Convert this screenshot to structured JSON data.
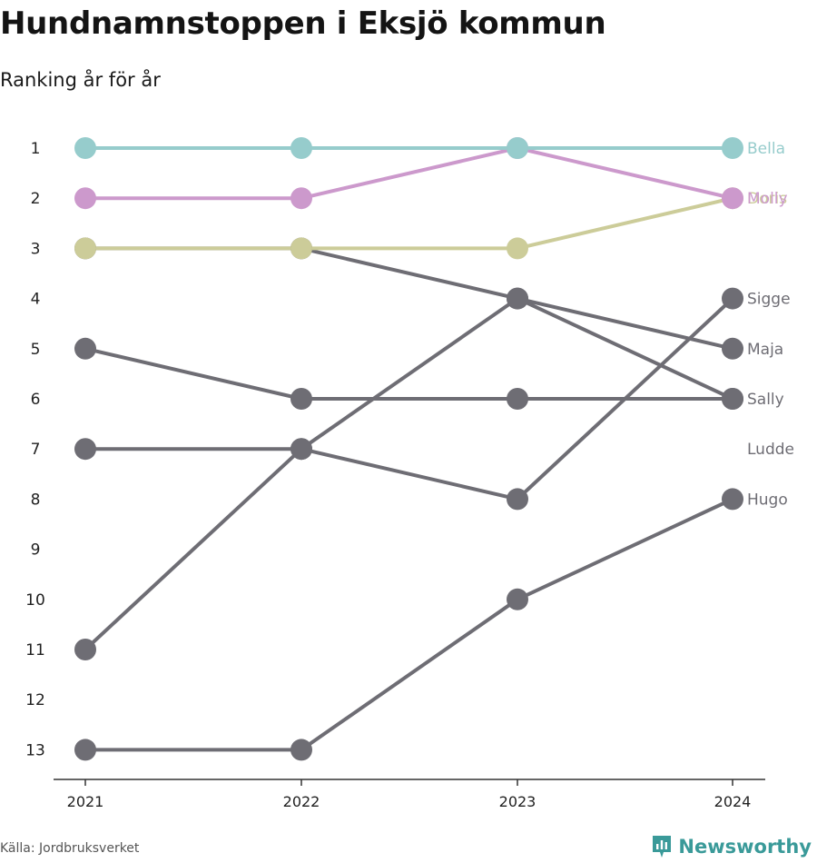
{
  "header": {
    "title": "Hundnamnstoppen i Eksjö kommun",
    "subtitle": "Ranking år för år"
  },
  "footer": {
    "source": "Källa: Jordbruksverket",
    "brand": "Newsworthy"
  },
  "colors": {
    "highlight_1": "#96cccc",
    "highlight_2": "#cc99cc",
    "highlight_3": "#cccc99",
    "default": "#6e6d74",
    "axis": "#333333",
    "brand": "#3a9a99"
  },
  "icons": {
    "brand_logo": "bar-chart-badge-icon"
  },
  "chart_data": {
    "type": "line",
    "title": "Hundnamnstoppen i Eksjö kommun",
    "subtitle": "Ranking år för år",
    "x": [
      "2021",
      "2022",
      "2023",
      "2024"
    ],
    "y_ticks": [
      "1",
      "2",
      "3",
      "4",
      "5",
      "6",
      "7",
      "8",
      "9",
      "10",
      "11",
      "12",
      "13"
    ],
    "ylim": [
      1,
      13
    ],
    "y_reversed": true,
    "grid": false,
    "legend": "direct labels at right end",
    "series": [
      {
        "name": "Hugo",
        "values": [
          13,
          13,
          10,
          8
        ],
        "color": "#6e6d74"
      },
      {
        "name": "Ludde",
        "values": [
          11,
          7,
          4,
          6
        ],
        "color": "#6e6d74",
        "label_rank": 7
      },
      {
        "name": "Sigge",
        "values": [
          7,
          7,
          8,
          4
        ],
        "color": "#6e6d74"
      },
      {
        "name": "Sally",
        "values": [
          5,
          6,
          6,
          6
        ],
        "color": "#6e6d74"
      },
      {
        "name": "Maja",
        "values": [
          3,
          3,
          4,
          5
        ],
        "color": "#6e6d74"
      },
      {
        "name": "Doris",
        "values": [
          3,
          3,
          3,
          2
        ],
        "color": "#cccc99"
      },
      {
        "name": "Molly",
        "values": [
          2,
          2,
          1,
          2
        ],
        "color": "#cc99cc"
      },
      {
        "name": "Bella",
        "values": [
          1,
          1,
          1,
          1
        ],
        "color": "#96cccc"
      }
    ]
  }
}
